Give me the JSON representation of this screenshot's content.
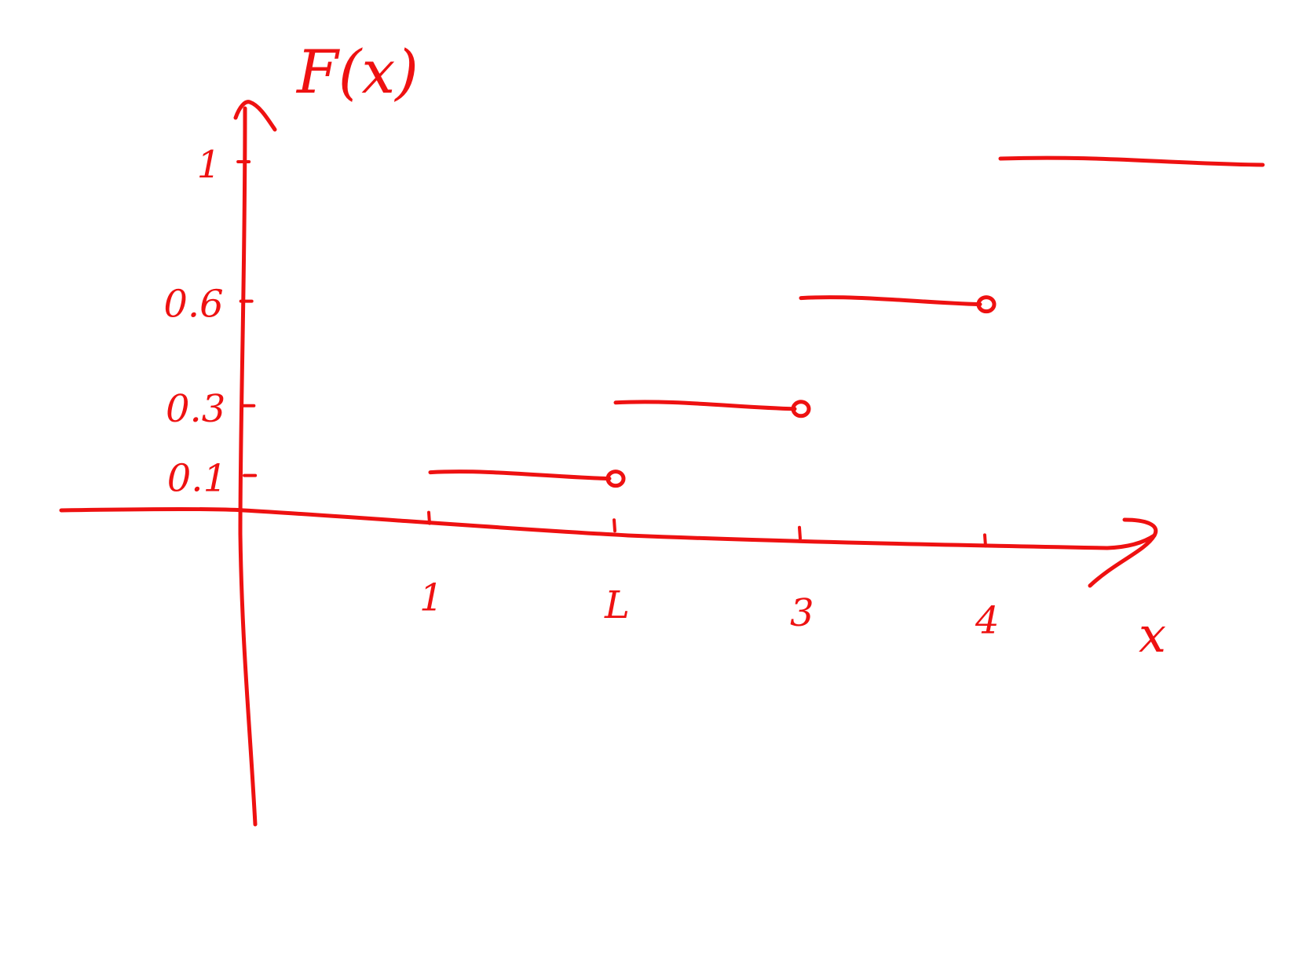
{
  "chart_data": {
    "type": "line",
    "subtype": "step-cdf",
    "title": "F(x)",
    "xlabel": "x",
    "ylabel": "",
    "x_ticks": [
      {
        "value": 1,
        "label": "1"
      },
      {
        "value": 2,
        "label": "L"
      },
      {
        "value": 3,
        "label": "3"
      },
      {
        "value": 4,
        "label": "4"
      }
    ],
    "y_ticks": [
      {
        "value": 0.1,
        "label": "0.1"
      },
      {
        "value": 0.3,
        "label": "0.3"
      },
      {
        "value": 0.6,
        "label": "0.6"
      },
      {
        "value": 1,
        "label": "1"
      }
    ],
    "xlim": [
      -1,
      5.5
    ],
    "ylim": [
      -0.6,
      1.25
    ],
    "series": [
      {
        "name": "F(x)",
        "steps": [
          {
            "x_start": 1,
            "x_end": 2,
            "y": 0.1,
            "open_end": true
          },
          {
            "x_start": 2,
            "x_end": 3,
            "y": 0.3,
            "open_end": true
          },
          {
            "x_start": 3,
            "x_end": 4,
            "y": 0.6,
            "open_end": true
          },
          {
            "x_start": 4,
            "x_end": 5.5,
            "y": 1,
            "open_end": false
          }
        ]
      }
    ],
    "color": "#ee1111",
    "grid": false,
    "legend": "none"
  }
}
